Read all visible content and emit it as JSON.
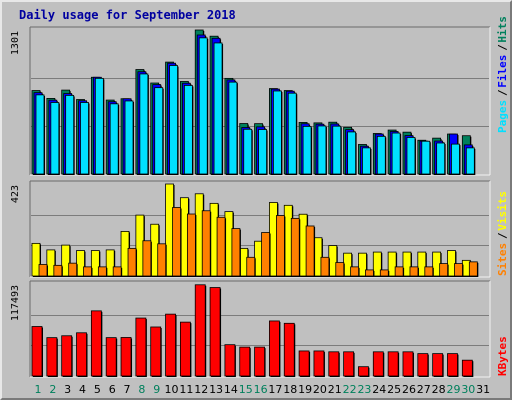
{
  "title": "Daily usage for September 2018",
  "colors": {
    "background": "#c0c0c0",
    "hits": "#00805c",
    "files": "#0000ff",
    "pages": "#00e0ff",
    "visits": "#ffff00",
    "sites": "#ff8000",
    "kbytes": "#ff0000",
    "title": "#0000a0",
    "weekend_day": "#00805c",
    "weekday": "#000000"
  },
  "chart_data": [
    {
      "type": "bar",
      "panel": "top",
      "max_label": "1301",
      "ylim": [
        0,
        1301
      ],
      "grid": true,
      "legend_position": "right",
      "legend": [
        {
          "text": "Pages",
          "color": "#00e0ff"
        },
        {
          "text": "Files",
          "color": "#0000ff"
        },
        {
          "text": "Hits",
          "color": "#00805c"
        }
      ],
      "categories": [
        "1",
        "2",
        "3",
        "4",
        "5",
        "6",
        "7",
        "8",
        "9",
        "10",
        "11",
        "12",
        "13",
        "14",
        "15",
        "16",
        "17",
        "18",
        "19",
        "20",
        "21",
        "22",
        "23",
        "24",
        "25",
        "26",
        "27",
        "28",
        "29",
        "30",
        "31"
      ],
      "weekend_days": [
        "1",
        "2",
        "8",
        "9",
        "15",
        "16",
        "22",
        "23",
        "29",
        "30"
      ],
      "series": [
        {
          "name": "Hits",
          "values": [
            754,
            683,
            758,
            673,
            874,
            668,
            680,
            944,
            822,
            1011,
            836,
            1301,
            1245,
            864,
            456,
            455,
            772,
            754,
            466,
            462,
            468,
            422,
            267,
            366,
            397,
            378,
            305,
            324,
            361,
            346,
            0
          ]
        },
        {
          "name": "Files",
          "values": [
            735,
            667,
            727,
            662,
            874,
            653,
            680,
            924,
            808,
            1001,
            820,
            1256,
            1226,
            850,
            420,
            426,
            767,
            748,
            454,
            450,
            452,
            401,
            251,
            361,
            384,
            347,
            297,
            298,
            361,
            263,
            0
          ]
        },
        {
          "name": "Pages",
          "values": [
            715,
            646,
            710,
            646,
            864,
            634,
            660,
            904,
            780,
            980,
            800,
            1230,
            1184,
            830,
            404,
            402,
            750,
            730,
            430,
            434,
            432,
            380,
            236,
            340,
            370,
            330,
            296,
            280,
            270,
            236,
            0
          ]
        }
      ]
    },
    {
      "type": "bar",
      "panel": "middle",
      "max_label": "423",
      "ylim": [
        0,
        423
      ],
      "grid": true,
      "legend_position": "right",
      "legend": [
        {
          "text": "Sites",
          "color": "#ff8000"
        },
        {
          "text": "Visits",
          "color": "#ffff00"
        }
      ],
      "categories": [
        "1",
        "2",
        "3",
        "4",
        "5",
        "6",
        "7",
        "8",
        "9",
        "10",
        "11",
        "12",
        "13",
        "14",
        "15",
        "16",
        "17",
        "18",
        "19",
        "20",
        "21",
        "22",
        "23",
        "24",
        "25",
        "26",
        "27",
        "28",
        "29",
        "30",
        "31"
      ],
      "series": [
        {
          "name": "Visits",
          "values": [
            150,
            120,
            142,
            117,
            117,
            120,
            205,
            280,
            238,
            423,
            360,
            378,
            334,
            296,
            127,
            160,
            338,
            325,
            284,
            176,
            140,
            105,
            105,
            110,
            110,
            110,
            110,
            110,
            117,
            72,
            0
          ]
        },
        {
          "name": "Sites",
          "values": [
            53,
            49,
            59,
            42,
            42,
            42,
            127,
            162,
            148,
            315,
            285,
            300,
            270,
            218,
            86,
            200,
            278,
            265,
            230,
            86,
            62,
            42,
            28,
            28,
            42,
            42,
            42,
            57,
            57,
            65,
            0
          ]
        }
      ]
    },
    {
      "type": "bar",
      "panel": "bottom",
      "max_label": "117493",
      "ylim": [
        0,
        117493
      ],
      "grid": true,
      "legend_position": "right",
      "legend": [
        {
          "text": "KBytes",
          "color": "#ff0000"
        }
      ],
      "categories": [
        "1",
        "2",
        "3",
        "4",
        "5",
        "6",
        "7",
        "8",
        "9",
        "10",
        "11",
        "12",
        "13",
        "14",
        "15",
        "16",
        "17",
        "18",
        "19",
        "20",
        "21",
        "22",
        "23",
        "24",
        "25",
        "26",
        "27",
        "28",
        "29",
        "30",
        "31"
      ],
      "series": [
        {
          "name": "KBytes",
          "values": [
            63200,
            49000,
            51400,
            55200,
            83200,
            49000,
            49200,
            74000,
            62600,
            79000,
            68800,
            116500,
            113000,
            40000,
            36900,
            36900,
            70300,
            67300,
            32000,
            32000,
            30900,
            30900,
            11900,
            30900,
            30900,
            30900,
            28600,
            28600,
            28600,
            20200,
            0
          ]
        }
      ]
    }
  ]
}
